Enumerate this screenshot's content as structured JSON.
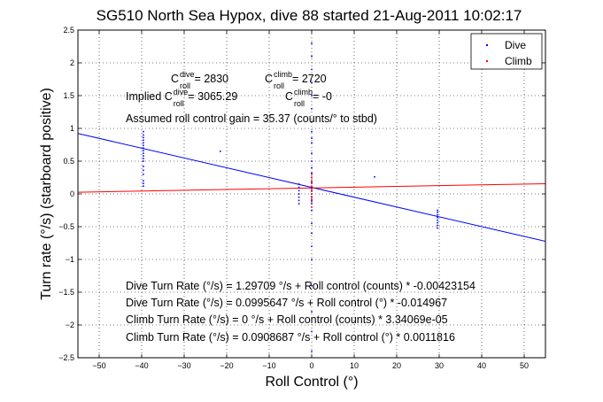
{
  "chart_data": {
    "type": "scatter",
    "title": "SG510 North Sea Hypox, dive 88 started 21-Aug-2011 10:02:17",
    "xlabel": "Roll Control (°)",
    "ylabel": "Turn rate (°/s) (starboard positive)",
    "xlim": [
      -55,
      55
    ],
    "ylim": [
      -2.5,
      2.5
    ],
    "xticks": [
      -50,
      -40,
      -30,
      -20,
      -10,
      0,
      10,
      20,
      30,
      40,
      50
    ],
    "yticks": [
      -2.5,
      -2,
      -1.5,
      -1,
      -0.5,
      0,
      0.5,
      1,
      1.5,
      2,
      2.5
    ],
    "grid": true,
    "legend_position": "top-right",
    "series": [
      {
        "name": "Dive",
        "color": "#0000ff",
        "marker": "point",
        "points": [
          [
            -39.6,
            0.95
          ],
          [
            -39.6,
            0.9
          ],
          [
            -39.6,
            0.86
          ],
          [
            -39.6,
            0.82
          ],
          [
            -39.6,
            0.78
          ],
          [
            -39.6,
            0.74
          ],
          [
            -39.6,
            0.7
          ],
          [
            -39.6,
            0.66
          ],
          [
            -39.6,
            0.62
          ],
          [
            -39.6,
            0.58
          ],
          [
            -39.6,
            0.54
          ],
          [
            -39.6,
            0.5
          ],
          [
            -39.6,
            0.42
          ],
          [
            -39.6,
            0.36
          ],
          [
            -39.6,
            0.3
          ],
          [
            -39.6,
            0.2
          ],
          [
            -39.6,
            0.16
          ],
          [
            -39.6,
            0.12
          ],
          [
            -21.5,
            0.65
          ],
          [
            14.8,
            0.26
          ],
          [
            -3,
            0.15
          ],
          [
            -3,
            0.1
          ],
          [
            -3,
            0.05
          ],
          [
            -3,
            0.0
          ],
          [
            -3,
            -0.05
          ],
          [
            -3,
            -0.1
          ],
          [
            -3,
            -0.15
          ],
          [
            0,
            2.5
          ],
          [
            0,
            2.3
          ],
          [
            0,
            2.1
          ],
          [
            0,
            1.9
          ],
          [
            0,
            1.7
          ],
          [
            0,
            1.5
          ],
          [
            0,
            1.3
          ],
          [
            0,
            1.1
          ],
          [
            0,
            0.95
          ],
          [
            0,
            0.85
          ],
          [
            0,
            0.78
          ],
          [
            0,
            0.62
          ],
          [
            0,
            0.5
          ],
          [
            0,
            0.4
          ],
          [
            0,
            0.32
          ],
          [
            0,
            0.25
          ],
          [
            0,
            0.18
          ],
          [
            0,
            0.1
          ],
          [
            0,
            0.05
          ],
          [
            0,
            0.0
          ],
          [
            0,
            -0.05
          ],
          [
            0,
            -0.1
          ],
          [
            0,
            -0.15
          ],
          [
            0,
            -0.25
          ],
          [
            0,
            -0.45
          ],
          [
            0,
            -0.6
          ],
          [
            0,
            -0.8
          ],
          [
            0,
            -1.0
          ],
          [
            0,
            -1.4
          ],
          [
            0,
            -1.8
          ],
          [
            0,
            -2.1
          ],
          [
            0,
            -2.4
          ],
          [
            29.6,
            -0.25
          ],
          [
            29.6,
            -0.28
          ],
          [
            29.6,
            -0.32
          ],
          [
            29.6,
            -0.36
          ],
          [
            29.6,
            -0.4
          ],
          [
            29.6,
            -0.44
          ],
          [
            29.6,
            -0.48
          ],
          [
            29.6,
            -0.52
          ]
        ],
        "fit_line": {
          "slope": -0.014967,
          "intercept": 0.0995647
        }
      },
      {
        "name": "Climb",
        "color": "#ff0000",
        "marker": "point",
        "points": [
          [
            0,
            0.3
          ],
          [
            0,
            0.25
          ],
          [
            0,
            0.2
          ],
          [
            0,
            0.16
          ],
          [
            0,
            0.12
          ],
          [
            0,
            0.08
          ],
          [
            0,
            0.04
          ],
          [
            0,
            0.0
          ],
          [
            0,
            -0.04
          ],
          [
            0,
            -0.08
          ],
          [
            0,
            -0.12
          ],
          [
            0,
            -0.2
          ]
        ],
        "fit_line": {
          "slope": 0.0011816,
          "intercept": 0.0908687
        }
      }
    ],
    "annotations": [
      {
        "name": "c-dive",
        "parts": [
          "C",
          "dive",
          "roll",
          " = 2830"
        ]
      },
      {
        "name": "c-climb",
        "parts": [
          "C",
          "climb",
          "roll",
          "= 2720"
        ]
      },
      {
        "name": "implied-c-dive",
        "parts": [
          "Implied C",
          "dive",
          "roll",
          " = 3065.29"
        ]
      },
      {
        "name": "implied-c-climb",
        "parts": [
          "C",
          "climb",
          "roll",
          " = -0"
        ]
      },
      {
        "name": "gain",
        "text": "Assumed roll control gain = 35.37 (counts/° to stbd)"
      },
      {
        "name": "dive-counts-fit",
        "text": "Dive Turn Rate (°/s) = 1.29709 °/s + Roll control (counts) * -0.00423154"
      },
      {
        "name": "dive-deg-fit",
        "text": "Dive Turn Rate (°/s) = 0.0995647 °/s + Roll control (°) * -0.014967"
      },
      {
        "name": "climb-counts-fit",
        "text": "Climb Turn Rate (°/s) = 0 °/s + Roll control (counts) * 3.34069e-05"
      },
      {
        "name": "climb-deg-fit",
        "text": "Climb Turn Rate (°/s) = 0.0908687 °/s + Roll control (°) * 0.0011816"
      }
    ]
  }
}
